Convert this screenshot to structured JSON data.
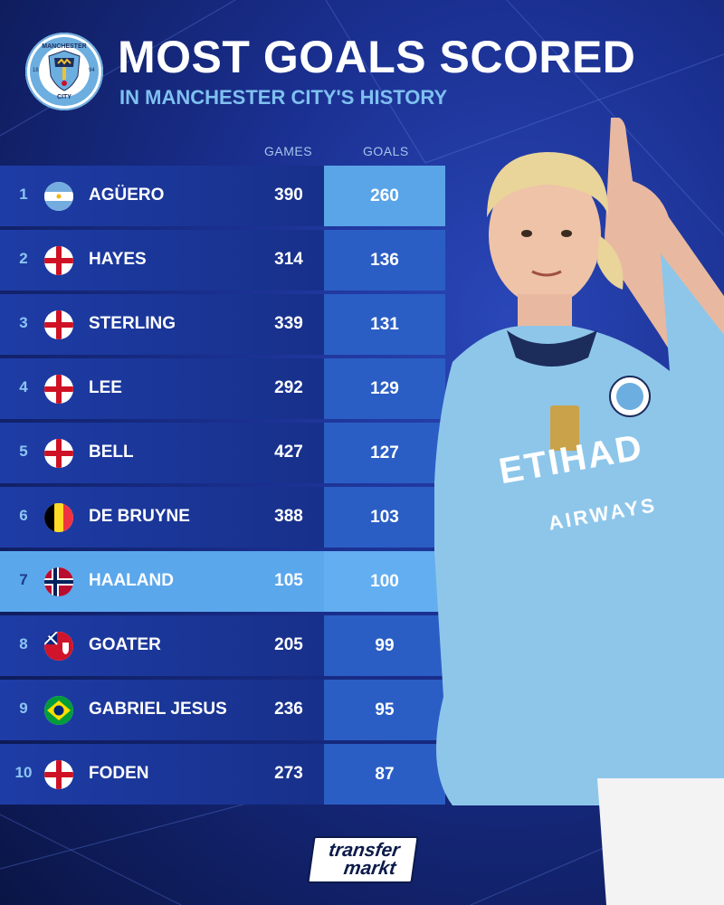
{
  "header": {
    "title": "MOST GOALS SCORED",
    "subtitle": "IN MANCHESTER CITY'S HISTORY"
  },
  "crest": {
    "top_text": "MANCHESTER",
    "bottom_text": "CITY",
    "year_left": "18",
    "year_right": "94"
  },
  "columns": {
    "games": "GAMES",
    "goals": "GOALS"
  },
  "rows": [
    {
      "rank": "1",
      "flag": "argentina-flag",
      "name": "AGÜERO",
      "games": "390",
      "goals": "260"
    },
    {
      "rank": "2",
      "flag": "england-flag",
      "name": "HAYES",
      "games": "314",
      "goals": "136"
    },
    {
      "rank": "3",
      "flag": "england-flag",
      "name": "STERLING",
      "games": "339",
      "goals": "131"
    },
    {
      "rank": "4",
      "flag": "england-flag",
      "name": "LEE",
      "games": "292",
      "goals": "129"
    },
    {
      "rank": "5",
      "flag": "england-flag",
      "name": "BELL",
      "games": "427",
      "goals": "127"
    },
    {
      "rank": "6",
      "flag": "belgium-flag",
      "name": "DE BRUYNE",
      "games": "388",
      "goals": "103"
    },
    {
      "rank": "7",
      "flag": "norway-flag",
      "name": "HAALAND",
      "games": "105",
      "goals": "100"
    },
    {
      "rank": "8",
      "flag": "bermuda-flag",
      "name": "GOATER",
      "games": "205",
      "goals": "99"
    },
    {
      "rank": "9",
      "flag": "brazil-flag",
      "name": "GABRIEL JESUS",
      "games": "236",
      "goals": "95"
    },
    {
      "rank": "10",
      "flag": "england-flag",
      "name": "FODEN",
      "games": "273",
      "goals": "87"
    }
  ],
  "player_shirt": {
    "sponsor": "ETIHAD",
    "sponsor_sub": "AIRWAYS"
  },
  "logo": {
    "line1": "transfer",
    "line2": "markt"
  },
  "colors": {
    "background": "#1a2f8f",
    "row": "#1e3ca6",
    "goals_cell": "#2b5ec4",
    "highlight": "#5aa7ec",
    "accent_text": "#7fc0f0",
    "shirt": "#8ec6ea"
  }
}
